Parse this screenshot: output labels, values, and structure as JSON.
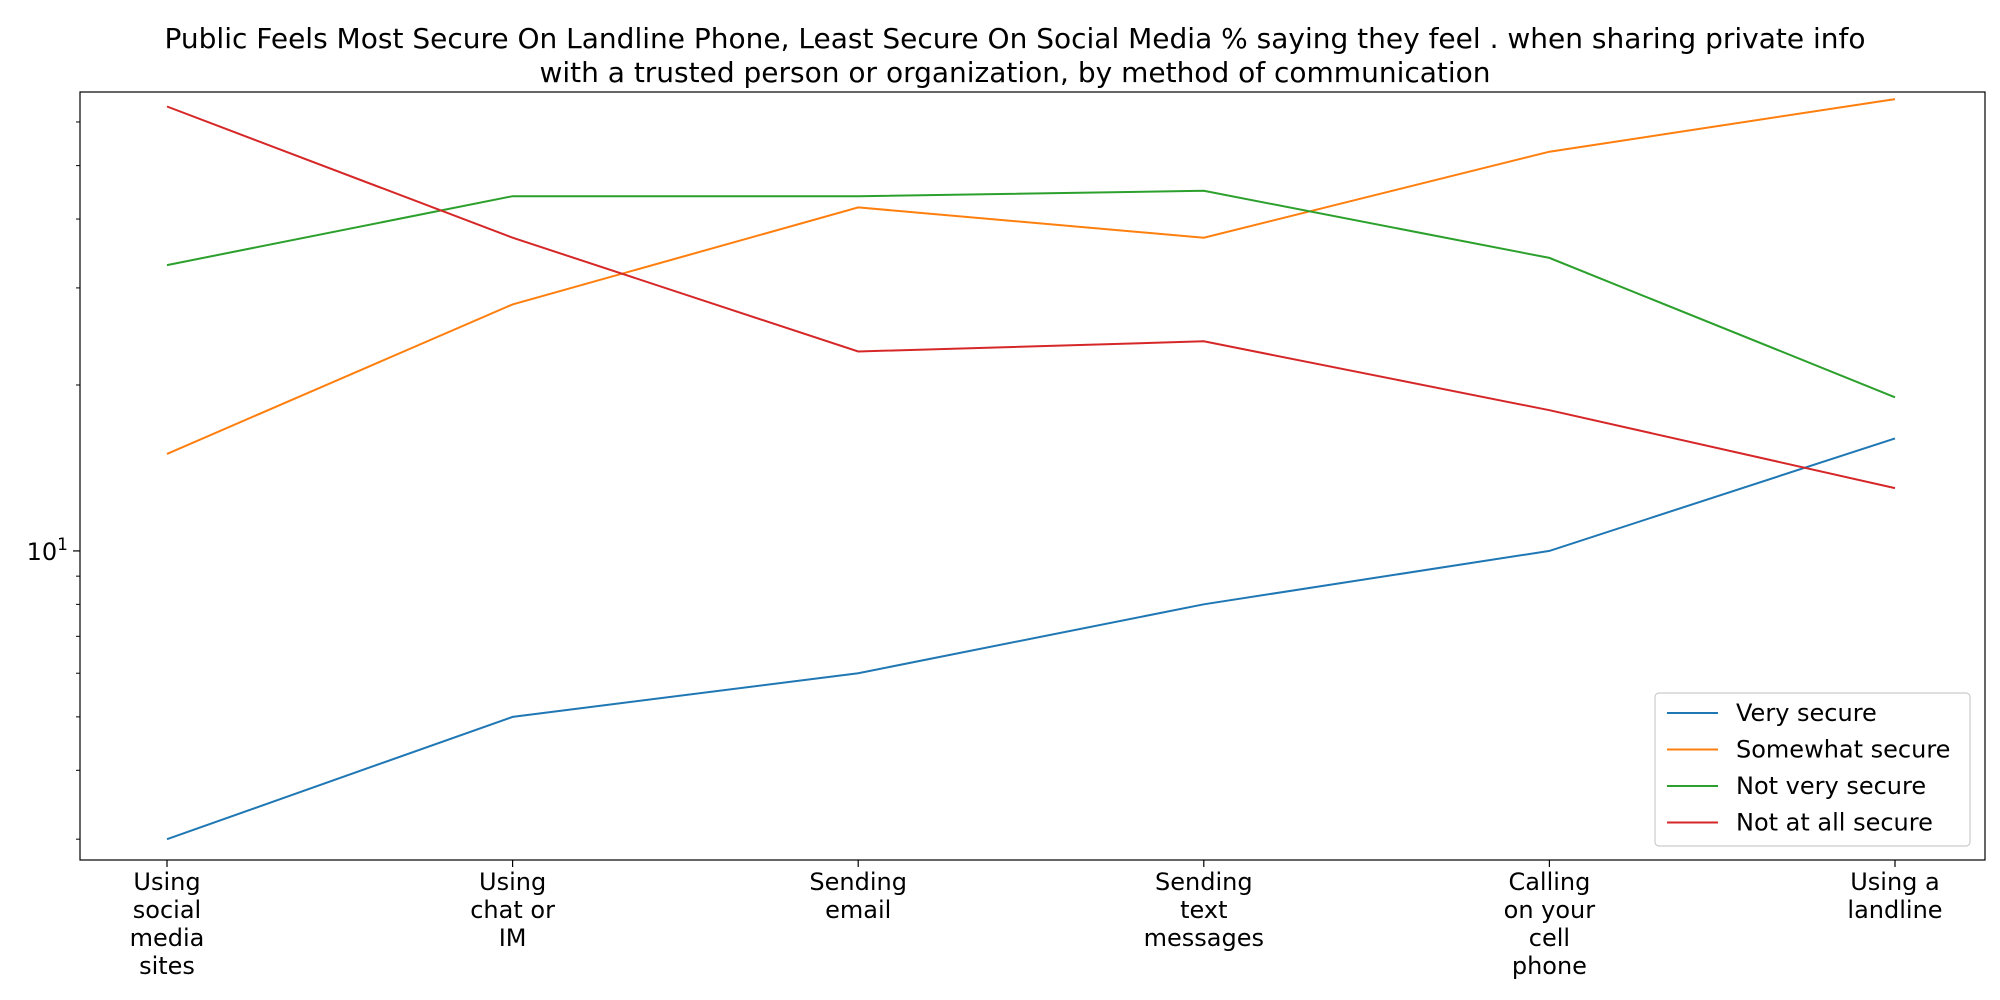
{
  "chart_data": {
    "type": "line",
    "title_lines": [
      "Public Feels Most Secure On Landline Phone, Least Secure On Social Media % saying they feel . when sharing private info",
      "with a trusted person or organization, by method of communication"
    ],
    "xlabel": "",
    "ylabel": "",
    "yscale": "log",
    "ylim": [
      2.75,
      68
    ],
    "ytick_label": "10",
    "ytick_exponent": "1",
    "categories": [
      [
        "Using",
        "social",
        "media",
        "sites"
      ],
      [
        "Using",
        "chat or",
        "IM"
      ],
      [
        "Sending",
        "email"
      ],
      [
        "Sending",
        "text",
        "messages"
      ],
      [
        "Calling",
        "on your",
        "cell",
        "phone"
      ],
      [
        "Using a",
        "landline"
      ]
    ],
    "series": [
      {
        "name": "Very secure",
        "color": "#1f77b4",
        "values": [
          3,
          5,
          6,
          8,
          10,
          16
        ]
      },
      {
        "name": "Somewhat secure",
        "color": "#ff7f0e",
        "values": [
          15,
          28,
          42,
          37,
          53,
          66
        ]
      },
      {
        "name": "Not very secure",
        "color": "#2ca02c",
        "values": [
          33,
          44,
          44,
          45,
          34,
          19
        ]
      },
      {
        "name": "Not at all secure",
        "color": "#d62728",
        "values": [
          64,
          37,
          23,
          24,
          18,
          13
        ]
      }
    ],
    "legend_position": "lower-right"
  }
}
